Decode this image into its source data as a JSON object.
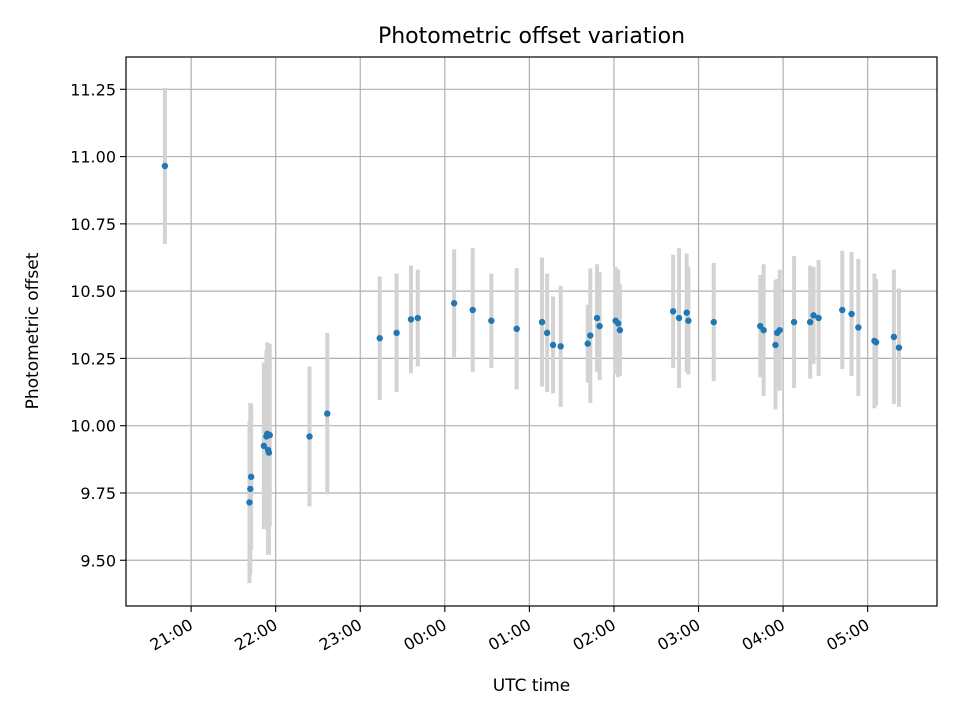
{
  "chart_data": {
    "type": "scatter",
    "title": "Photometric offset variation",
    "xlabel": "UTC time",
    "ylabel": "Photometric offset",
    "xlim_hours": [
      -3.77,
      5.82
    ],
    "ylim": [
      9.33,
      11.37
    ],
    "grid": true,
    "colors": {
      "point": "#1f77b4",
      "errorbar": "#d3d3d3",
      "grid": "#b0b0b0",
      "axes": "#000000"
    },
    "x_ticks": [
      {
        "label": "21:00",
        "hour": -3
      },
      {
        "label": "22:00",
        "hour": -2
      },
      {
        "label": "23:00",
        "hour": -1
      },
      {
        "label": "00:00",
        "hour": 0
      },
      {
        "label": "01:00",
        "hour": 1
      },
      {
        "label": "02:00",
        "hour": 2
      },
      {
        "label": "03:00",
        "hour": 3
      },
      {
        "label": "04:00",
        "hour": 4
      },
      {
        "label": "05:00",
        "hour": 5
      }
    ],
    "y_ticks": [
      {
        "label": "9.50",
        "value": 9.5
      },
      {
        "label": "9.75",
        "value": 9.75
      },
      {
        "label": "10.00",
        "value": 10.0
      },
      {
        "label": "10.25",
        "value": 10.25
      },
      {
        "label": "10.50",
        "value": 10.5
      },
      {
        "label": "10.75",
        "value": 10.75
      },
      {
        "label": "11.00",
        "value": 11.0
      },
      {
        "label": "11.25",
        "value": 11.25
      }
    ],
    "series": [
      {
        "name": "offset",
        "points": [
          {
            "t": -3.31,
            "y": 10.965,
            "err": 0.29
          },
          {
            "t": -2.31,
            "y": 9.715,
            "err": 0.3
          },
          {
            "t": -2.3,
            "y": 9.765,
            "err": 0.32
          },
          {
            "t": -2.29,
            "y": 9.81,
            "err": 0.27
          },
          {
            "t": -2.14,
            "y": 9.925,
            "err": 0.31
          },
          {
            "t": -2.11,
            "y": 9.96,
            "err": 0.32
          },
          {
            "t": -2.1,
            "y": 9.97,
            "err": 0.34
          },
          {
            "t": -2.09,
            "y": 9.91,
            "err": 0.39
          },
          {
            "t": -2.08,
            "y": 9.9,
            "err": 0.38
          },
          {
            "t": -2.07,
            "y": 9.965,
            "err": 0.34
          },
          {
            "t": -1.6,
            "y": 9.96,
            "err": 0.26
          },
          {
            "t": -1.39,
            "y": 10.045,
            "err": 0.3
          },
          {
            "t": -0.77,
            "y": 10.325,
            "err": 0.23
          },
          {
            "t": -0.57,
            "y": 10.345,
            "err": 0.22
          },
          {
            "t": -0.4,
            "y": 10.395,
            "err": 0.2
          },
          {
            "t": -0.32,
            "y": 10.4,
            "err": 0.18
          },
          {
            "t": 0.11,
            "y": 10.455,
            "err": 0.2
          },
          {
            "t": 0.33,
            "y": 10.43,
            "err": 0.23
          },
          {
            "t": 0.55,
            "y": 10.39,
            "err": 0.175
          },
          {
            "t": 0.85,
            "y": 10.36,
            "err": 0.225
          },
          {
            "t": 1.15,
            "y": 10.385,
            "err": 0.24
          },
          {
            "t": 1.21,
            "y": 10.345,
            "err": 0.22
          },
          {
            "t": 1.28,
            "y": 10.3,
            "err": 0.18
          },
          {
            "t": 1.37,
            "y": 10.295,
            "err": 0.225
          },
          {
            "t": 1.69,
            "y": 10.305,
            "err": 0.145
          },
          {
            "t": 1.72,
            "y": 10.335,
            "err": 0.25
          },
          {
            "t": 1.8,
            "y": 10.4,
            "err": 0.2
          },
          {
            "t": 1.83,
            "y": 10.37,
            "err": 0.2
          },
          {
            "t": 2.02,
            "y": 10.39,
            "err": 0.2
          },
          {
            "t": 2.05,
            "y": 10.38,
            "err": 0.2
          },
          {
            "t": 2.07,
            "y": 10.355,
            "err": 0.17
          },
          {
            "t": 2.7,
            "y": 10.425,
            "err": 0.21
          },
          {
            "t": 2.77,
            "y": 10.4,
            "err": 0.26
          },
          {
            "t": 2.86,
            "y": 10.42,
            "err": 0.22
          },
          {
            "t": 2.88,
            "y": 10.39,
            "err": 0.2
          },
          {
            "t": 3.18,
            "y": 10.385,
            "err": 0.22
          },
          {
            "t": 3.73,
            "y": 10.37,
            "err": 0.19
          },
          {
            "t": 3.77,
            "y": 10.355,
            "err": 0.245
          },
          {
            "t": 3.91,
            "y": 10.3,
            "err": 0.24
          },
          {
            "t": 3.93,
            "y": 10.345,
            "err": 0.2
          },
          {
            "t": 3.96,
            "y": 10.355,
            "err": 0.225
          },
          {
            "t": 4.13,
            "y": 10.385,
            "err": 0.245
          },
          {
            "t": 4.32,
            "y": 10.385,
            "err": 0.21
          },
          {
            "t": 4.36,
            "y": 10.41,
            "err": 0.18
          },
          {
            "t": 4.42,
            "y": 10.4,
            "err": 0.215
          },
          {
            "t": 4.7,
            "y": 10.43,
            "err": 0.22
          },
          {
            "t": 4.81,
            "y": 10.415,
            "err": 0.23
          },
          {
            "t": 4.89,
            "y": 10.365,
            "err": 0.255
          },
          {
            "t": 5.08,
            "y": 10.315,
            "err": 0.25
          },
          {
            "t": 5.1,
            "y": 10.31,
            "err": 0.235
          },
          {
            "t": 5.31,
            "y": 10.33,
            "err": 0.25
          },
          {
            "t": 5.37,
            "y": 10.29,
            "err": 0.22
          }
        ]
      }
    ]
  }
}
